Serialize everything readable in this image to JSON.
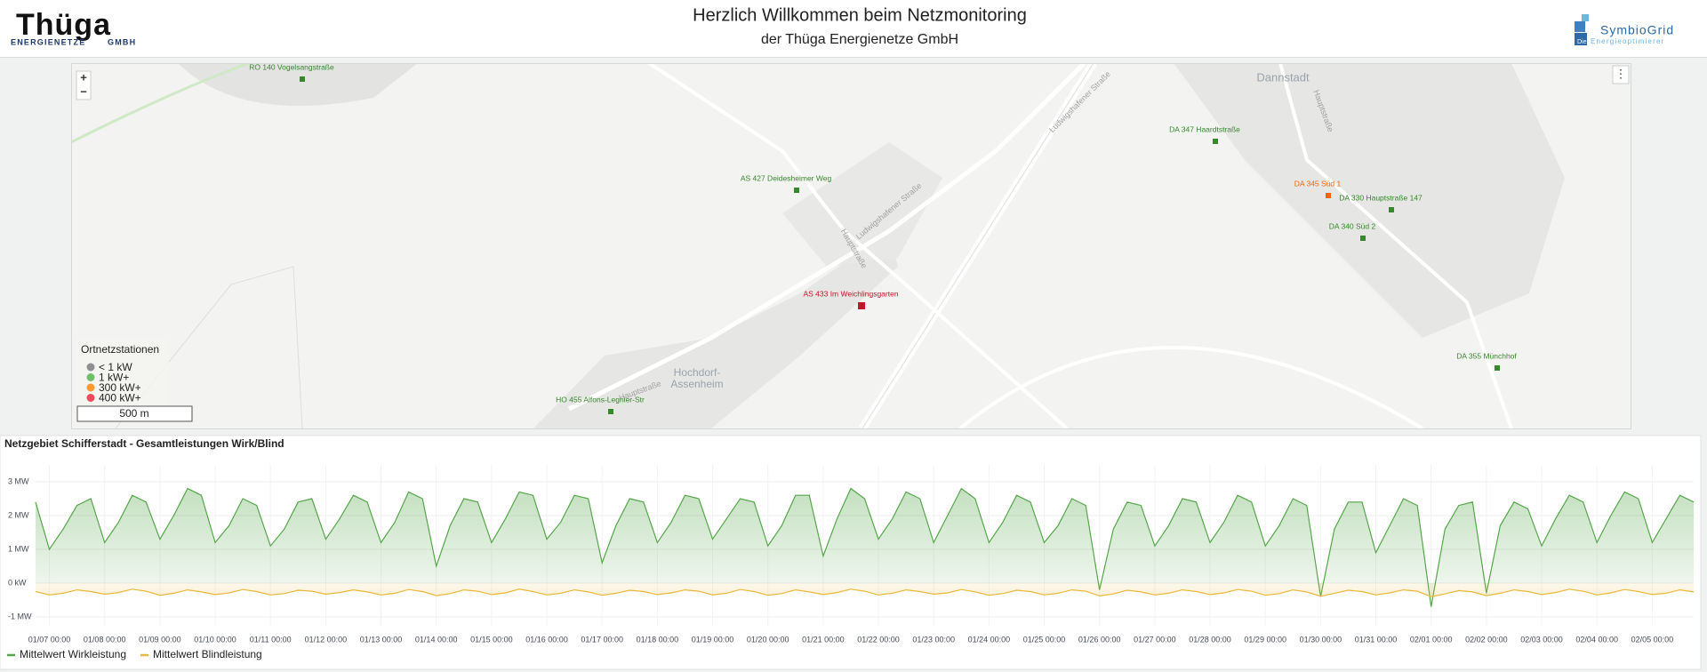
{
  "header": {
    "logo_left": "Thüga",
    "logo_left_sub1": "ENERGIENETZE",
    "logo_left_sub2": "GMBH",
    "title": "Herzlich Willkommen beim Netzmonitoring",
    "subtitle": "der Thüga Energienetze GmbH",
    "logo_right": "SymbioGrid",
    "logo_right_sub1": "Die",
    "logo_right_sub2": "Energieoptimierer"
  },
  "map": {
    "zoom_in": "+",
    "zoom_out": "−",
    "menu": "⋮",
    "places": [
      "Dannstadt",
      "Hochdorf-",
      "Assenheim"
    ],
    "streets": [
      "Ludwigshafener Straße",
      "Ludwigshafener Straße",
      "Hauptstraße",
      "Hauptstraße",
      "Hauptstraße"
    ],
    "stations": [
      {
        "label": "RÖ 140 Vogelsangstraße",
        "color": "#37872d"
      },
      {
        "label": "AS 427 Deidesheimer Weg",
        "color": "#37872d"
      },
      {
        "label": "DA 347 Haardtstraße",
        "color": "#37872d"
      },
      {
        "label": "DA 345 Süd 1",
        "color": "#fa6400"
      },
      {
        "label": "DA 330 Hauptstraße 147",
        "color": "#37872d"
      },
      {
        "label": "DA 340 Süd 2",
        "color": "#37872d"
      },
      {
        "label": "AS 433 Im Weichlingsgarten",
        "color": "#c4162a"
      },
      {
        "label": "DA 355 Münchhof",
        "color": "#37872d"
      },
      {
        "label": "HO 455 Alfons-Legnier-Str",
        "color": "#37872d"
      }
    ],
    "legend": {
      "title": "Ortnetzstationen",
      "items": [
        {
          "label": "< 1 kW",
          "color": "#8f8f8f"
        },
        {
          "label": "1 kW+",
          "color": "#73bf69"
        },
        {
          "label": "300 kW+",
          "color": "#ff9830"
        },
        {
          "label": "400 kW+",
          "color": "#f2495c"
        }
      ]
    },
    "scale": "500 m"
  },
  "chart_data": {
    "type": "line",
    "title": "Netzgebiet Schifferstadt - Gesamtleistungen Wirk/Blind",
    "grid": true,
    "xlim": [
      "01/06 18:00",
      "02/05 18:00"
    ],
    "xticks": [
      "01/07 00:00",
      "01/08 00:00",
      "01/09 00:00",
      "01/10 00:00",
      "01/11 00:00",
      "01/12 00:00",
      "01/13 00:00",
      "01/14 00:00",
      "01/15 00:00",
      "01/16 00:00",
      "01/17 00:00",
      "01/18 00:00",
      "01/19 00:00",
      "01/20 00:00",
      "01/21 00:00",
      "01/22 00:00",
      "01/23 00:00",
      "01/24 00:00",
      "01/25 00:00",
      "01/26 00:00",
      "01/27 00:00",
      "01/28 00:00",
      "01/29 00:00",
      "01/30 00:00",
      "01/31 00:00",
      "02/01 00:00",
      "02/02 00:00",
      "02/03 00:00",
      "02/04 00:00",
      "02/05 00:00"
    ],
    "ylim": [
      -1.25,
      3.5
    ],
    "yticks": [
      {
        "value": -1,
        "label": "-1 MW"
      },
      {
        "value": 0,
        "label": "0 kW"
      },
      {
        "value": 1,
        "label": "1 MW"
      },
      {
        "value": 2,
        "label": "2 MW"
      },
      {
        "value": 3,
        "label": "3 MW"
      }
    ],
    "x": [
      "01/06 18:00",
      "01/07 00:00",
      "01/07 06:00",
      "01/07 12:00",
      "01/07 18:00",
      "01/08 00:00",
      "01/08 06:00",
      "01/08 12:00",
      "01/08 18:00",
      "01/09 00:00",
      "01/09 06:00",
      "01/09 12:00",
      "01/09 18:00",
      "01/10 00:00",
      "01/10 06:00",
      "01/10 12:00",
      "01/10 18:00",
      "01/11 00:00",
      "01/11 06:00",
      "01/11 12:00",
      "01/11 18:00",
      "01/12 00:00",
      "01/12 06:00",
      "01/12 12:00",
      "01/12 18:00",
      "01/13 00:00",
      "01/13 06:00",
      "01/13 12:00",
      "01/13 18:00",
      "01/14 00:00",
      "01/14 06:00",
      "01/14 12:00",
      "01/14 18:00",
      "01/15 00:00",
      "01/15 06:00",
      "01/15 12:00",
      "01/15 18:00",
      "01/16 00:00",
      "01/16 06:00",
      "01/16 12:00",
      "01/16 18:00",
      "01/17 00:00",
      "01/17 06:00",
      "01/17 12:00",
      "01/17 18:00",
      "01/18 00:00",
      "01/18 06:00",
      "01/18 12:00",
      "01/18 18:00",
      "01/19 00:00",
      "01/19 06:00",
      "01/19 12:00",
      "01/19 18:00",
      "01/20 00:00",
      "01/20 06:00",
      "01/20 12:00",
      "01/20 18:00",
      "01/21 00:00",
      "01/21 06:00",
      "01/21 12:00",
      "01/21 18:00",
      "01/22 00:00",
      "01/22 06:00",
      "01/22 12:00",
      "01/22 18:00",
      "01/23 00:00",
      "01/23 06:00",
      "01/23 12:00",
      "01/23 18:00",
      "01/24 00:00",
      "01/24 06:00",
      "01/24 12:00",
      "01/24 18:00",
      "01/25 00:00",
      "01/25 06:00",
      "01/25 12:00",
      "01/25 18:00",
      "01/26 00:00",
      "01/26 06:00",
      "01/26 12:00",
      "01/26 18:00",
      "01/27 00:00",
      "01/27 06:00",
      "01/27 12:00",
      "01/27 18:00",
      "01/28 00:00",
      "01/28 06:00",
      "01/28 12:00",
      "01/28 18:00",
      "01/29 00:00",
      "01/29 06:00",
      "01/29 12:00",
      "01/29 18:00",
      "01/30 00:00",
      "01/30 06:00",
      "01/30 12:00",
      "01/30 18:00",
      "01/31 00:00",
      "01/31 06:00",
      "01/31 12:00",
      "01/31 18:00",
      "02/01 00:00",
      "02/01 06:00",
      "02/01 12:00",
      "02/01 18:00",
      "02/02 00:00",
      "02/02 06:00",
      "02/02 12:00",
      "02/02 18:00",
      "02/03 00:00",
      "02/03 06:00",
      "02/03 12:00",
      "02/03 18:00",
      "02/04 00:00",
      "02/04 06:00",
      "02/04 12:00",
      "02/04 18:00",
      "02/05 00:00",
      "02/05 06:00",
      "02/05 12:00",
      "02/05 18:00"
    ],
    "series": [
      {
        "name": "Mittelwert Wirkleistung",
        "color": "#56a64b",
        "area": true,
        "values": [
          2.4,
          1.0,
          1.6,
          2.3,
          2.5,
          1.2,
          1.8,
          2.6,
          2.4,
          1.3,
          2.0,
          2.8,
          2.6,
          1.2,
          1.7,
          2.5,
          2.3,
          1.1,
          1.6,
          2.4,
          2.5,
          1.3,
          1.9,
          2.6,
          2.4,
          1.2,
          1.8,
          2.7,
          2.5,
          0.5,
          1.7,
          2.5,
          2.4,
          1.2,
          1.9,
          2.7,
          2.6,
          1.3,
          1.8,
          2.6,
          2.5,
          0.6,
          1.7,
          2.5,
          2.4,
          1.2,
          1.8,
          2.6,
          2.5,
          1.3,
          1.9,
          2.5,
          2.4,
          1.1,
          1.7,
          2.6,
          2.6,
          0.8,
          1.9,
          2.8,
          2.5,
          1.3,
          1.9,
          2.7,
          2.5,
          1.2,
          2.0,
          2.8,
          2.5,
          1.2,
          1.8,
          2.6,
          2.4,
          1.2,
          1.7,
          2.5,
          2.3,
          -0.2,
          1.6,
          2.4,
          2.3,
          1.1,
          1.7,
          2.5,
          2.4,
          1.2,
          1.8,
          2.6,
          2.4,
          1.1,
          1.7,
          2.5,
          2.3,
          -0.4,
          1.6,
          2.4,
          2.4,
          0.9,
          1.7,
          2.5,
          2.3,
          -0.7,
          1.6,
          2.3,
          2.4,
          -0.3,
          1.7,
          2.4,
          2.2,
          1.1,
          1.9,
          2.6,
          2.4,
          1.2,
          2.0,
          2.7,
          2.5,
          1.2,
          1.9,
          2.6,
          2.4
        ]
      },
      {
        "name": "Mittelwert Blindleistung",
        "color": "#eab839",
        "area": true,
        "values": [
          -0.25,
          -0.35,
          -0.3,
          -0.2,
          -0.25,
          -0.33,
          -0.28,
          -0.18,
          -0.24,
          -0.36,
          -0.3,
          -0.2,
          -0.26,
          -0.34,
          -0.29,
          -0.19,
          -0.25,
          -0.35,
          -0.31,
          -0.21,
          -0.24,
          -0.33,
          -0.28,
          -0.2,
          -0.26,
          -0.35,
          -0.3,
          -0.19,
          -0.25,
          -0.37,
          -0.31,
          -0.2,
          -0.24,
          -0.34,
          -0.29,
          -0.18,
          -0.25,
          -0.35,
          -0.3,
          -0.2,
          -0.26,
          -0.36,
          -0.3,
          -0.21,
          -0.25,
          -0.34,
          -0.29,
          -0.2,
          -0.24,
          -0.35,
          -0.3,
          -0.19,
          -0.25,
          -0.36,
          -0.31,
          -0.2,
          -0.26,
          -0.34,
          -0.28,
          -0.18,
          -0.24,
          -0.35,
          -0.3,
          -0.2,
          -0.25,
          -0.33,
          -0.29,
          -0.19,
          -0.26,
          -0.36,
          -0.31,
          -0.21,
          -0.25,
          -0.35,
          -0.3,
          -0.2,
          -0.24,
          -0.38,
          -0.32,
          -0.21,
          -0.26,
          -0.35,
          -0.3,
          -0.2,
          -0.25,
          -0.34,
          -0.29,
          -0.19,
          -0.24,
          -0.36,
          -0.31,
          -0.2,
          -0.26,
          -0.39,
          -0.3,
          -0.21,
          -0.25,
          -0.35,
          -0.29,
          -0.2,
          -0.24,
          -0.4,
          -0.32,
          -0.22,
          -0.26,
          -0.37,
          -0.3,
          -0.2,
          -0.25,
          -0.34,
          -0.28,
          -0.18,
          -0.24,
          -0.35,
          -0.29,
          -0.19,
          -0.25,
          -0.34,
          -0.3,
          -0.2,
          -0.26
        ]
      }
    ]
  }
}
